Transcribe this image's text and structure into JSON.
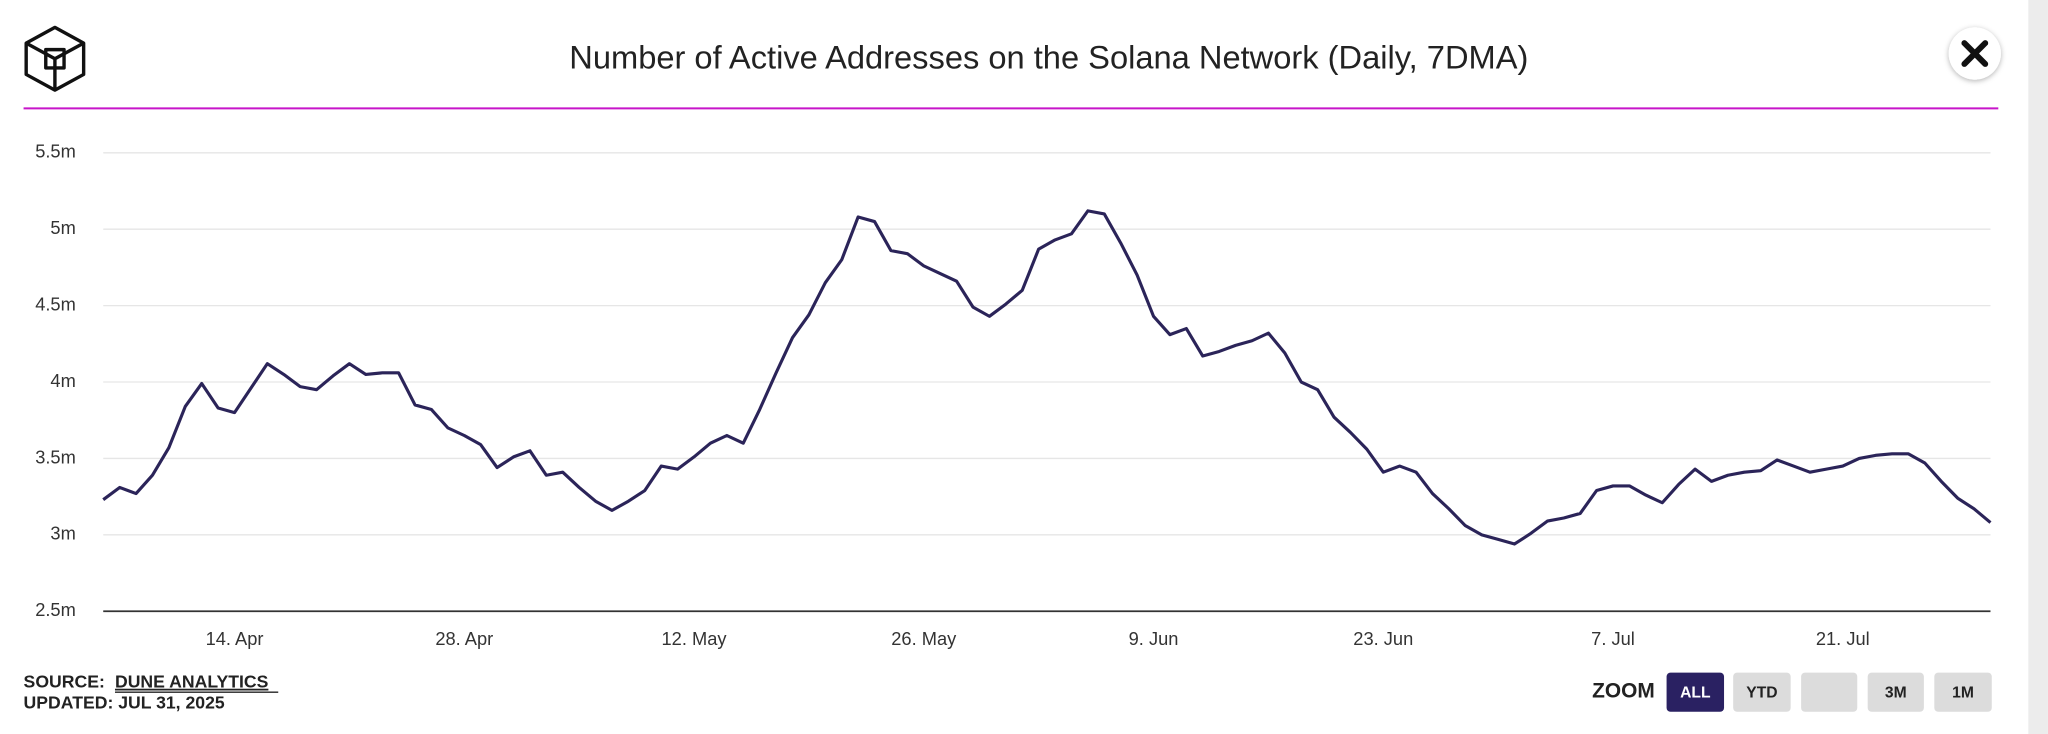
{
  "chart_data": {
    "type": "line",
    "title": "Number of Active Addresses on the Solana Network (Daily, 7DMA)",
    "source_label": "SOURCE:",
    "source": "DUNE ANALYTICS",
    "updated": "UPDATED: JUL 31, 2025",
    "zoom_label": "ZOOM",
    "zoom_buttons": [
      "ALL",
      "YTD",
      "3M",
      "1M"
    ],
    "color": "#2b2459",
    "grid": true,
    "x": [
      "04-06",
      "04-07",
      "04-08",
      "04-09",
      "04-10",
      "04-11",
      "04-12",
      "04-13",
      "04-14",
      "04-15",
      "04-16",
      "04-17",
      "04-18",
      "04-19",
      "04-20",
      "04-21",
      "04-22",
      "04-23",
      "04-24",
      "04-25",
      "04-26",
      "04-27",
      "04-28",
      "04-29",
      "04-30",
      "05-01",
      "05-02",
      "05-03",
      "05-04",
      "05-05",
      "05-06",
      "05-07",
      "05-08",
      "05-09",
      "05-10",
      "05-11",
      "05-12",
      "05-13",
      "05-14",
      "05-15",
      "05-16",
      "05-17",
      "05-18",
      "05-19",
      "05-20",
      "05-21",
      "05-22",
      "05-23",
      "05-24",
      "05-25",
      "05-26",
      "05-27",
      "05-28",
      "05-29",
      "05-30",
      "05-31",
      "06-01",
      "06-02",
      "06-03",
      "06-04",
      "06-05",
      "06-06",
      "06-07",
      "06-08",
      "06-09",
      "06-10",
      "06-11",
      "06-12",
      "06-13",
      "06-14",
      "06-15",
      "06-16",
      "06-17",
      "06-18",
      "06-19",
      "06-20",
      "06-21",
      "06-22",
      "06-23",
      "06-24",
      "06-25",
      "06-26",
      "06-27",
      "06-28",
      "06-29",
      "06-30",
      "07-01",
      "07-02",
      "07-03",
      "07-04",
      "07-05",
      "07-06",
      "07-07",
      "07-08",
      "07-09",
      "07-10",
      "07-11",
      "07-12",
      "07-13",
      "07-14",
      "07-15",
      "07-16",
      "07-17",
      "07-18",
      "07-19",
      "07-20",
      "07-21",
      "07-22",
      "07-23",
      "07-24",
      "07-25",
      "07-26",
      "07-27",
      "07-28",
      "07-29",
      "07-30"
    ],
    "values": [
      3.23,
      3.31,
      3.27,
      3.39,
      3.57,
      3.84,
      3.99,
      3.83,
      3.8,
      3.96,
      4.12,
      4.05,
      3.97,
      3.95,
      4.04,
      4.12,
      4.05,
      4.06,
      4.06,
      3.85,
      3.82,
      3.7,
      3.65,
      3.59,
      3.44,
      3.51,
      3.55,
      3.39,
      3.41,
      3.31,
      3.22,
      3.16,
      3.22,
      3.29,
      3.45,
      3.43,
      3.51,
      3.6,
      3.65,
      3.6,
      3.82,
      4.06,
      4.29,
      4.44,
      4.65,
      4.8,
      5.08,
      5.05,
      4.86,
      4.84,
      4.76,
      4.71,
      4.66,
      4.49,
      4.43,
      4.51,
      4.6,
      4.87,
      4.93,
      4.97,
      5.12,
      5.1,
      4.91,
      4.7,
      4.43,
      4.31,
      4.35,
      4.17,
      4.2,
      4.24,
      4.27,
      4.32,
      4.19,
      4.0,
      3.95,
      3.77,
      3.67,
      3.56,
      3.41,
      3.45,
      3.41,
      3.27,
      3.17,
      3.06,
      3.0,
      2.97,
      2.94,
      3.01,
      3.09,
      3.11,
      3.14,
      3.29,
      3.32,
      3.32,
      3.26,
      3.21,
      3.33,
      3.43,
      3.35,
      3.39,
      3.41,
      3.42,
      3.49,
      3.45,
      3.41,
      3.43,
      3.45,
      3.5,
      3.52,
      3.53,
      3.53,
      3.47,
      3.35,
      3.24,
      3.17,
      3.08
    ],
    "xlim": [
      "04-06",
      "07-30"
    ],
    "xticks": [
      {
        "value": "04-14",
        "label": "14. Apr"
      },
      {
        "value": "04-28",
        "label": "28. Apr"
      },
      {
        "value": "05-12",
        "label": "12. May"
      },
      {
        "value": "05-26",
        "label": "26. May"
      },
      {
        "value": "06-09",
        "label": "9. Jun"
      },
      {
        "value": "06-23",
        "label": "23. Jun"
      },
      {
        "value": "07-07",
        "label": "7. Jul"
      },
      {
        "value": "07-21",
        "label": "21. Jul"
      }
    ],
    "ylim": [
      2.5,
      5.5
    ],
    "yticks": [
      {
        "value": 2.5,
        "label": "2.5m"
      },
      {
        "value": 3,
        "label": "3m"
      },
      {
        "value": 3.5,
        "label": "3.5m"
      },
      {
        "value": 4,
        "label": "4m"
      },
      {
        "value": 4.5,
        "label": "4.5m"
      },
      {
        "value": 5,
        "label": "5m"
      },
      {
        "value": 5.5,
        "label": "5.5m"
      }
    ]
  }
}
